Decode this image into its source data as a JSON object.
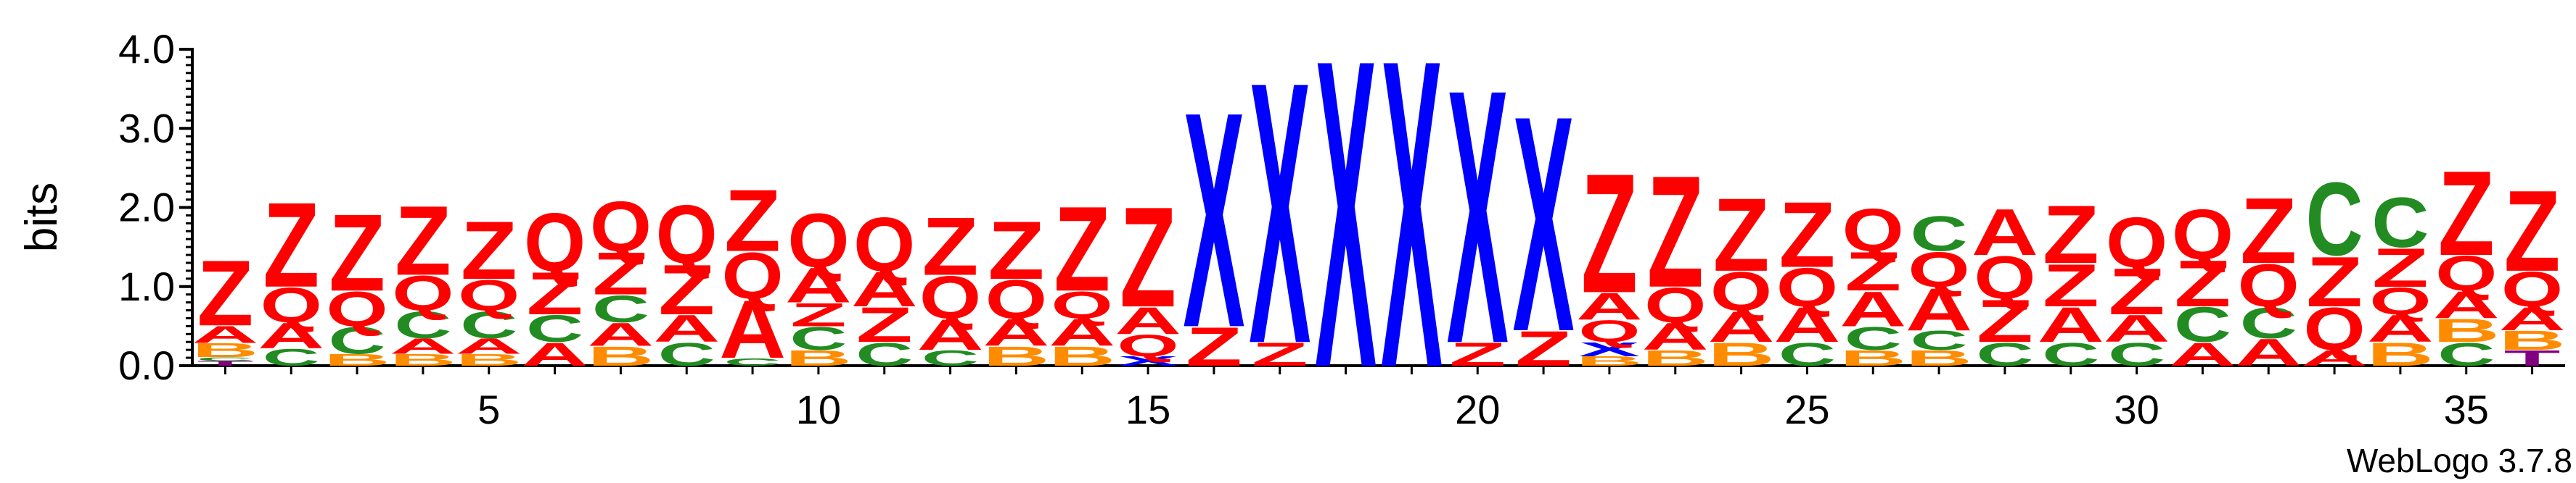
{
  "chart_data": {
    "type": "sequence-logo",
    "ylabel": "bits",
    "ylim": [
      0,
      4.0
    ],
    "y_ticks": [
      "0.0",
      "1.0",
      "2.0",
      "3.0",
      "4.0"
    ],
    "x_ticks": [
      5,
      10,
      15,
      20,
      25,
      30,
      35
    ],
    "xlim": [
      0.5,
      36.5
    ],
    "credit": "WebLogo 3.7.8",
    "colors": {
      "Z": "#ff0000",
      "Q": "#ff0000",
      "A": "#ff0000",
      "X": "#0000ff",
      "C": "#228b22",
      "B": "#ff8c00",
      "T": "#800080"
    },
    "columns": [
      {
        "pos": 1,
        "stack": [
          [
            "T",
            0.06
          ],
          [
            "C",
            0.05
          ],
          [
            "B",
            0.18
          ],
          [
            "A",
            0.22
          ],
          [
            "Z",
            0.85
          ]
        ]
      },
      {
        "pos": 2,
        "stack": [
          [
            "C",
            0.22
          ],
          [
            "A",
            0.33
          ],
          [
            "Q",
            0.45
          ],
          [
            "Z",
            1.1
          ]
        ]
      },
      {
        "pos": 3,
        "stack": [
          [
            "B",
            0.15
          ],
          [
            "C",
            0.35
          ],
          [
            "Q",
            0.45
          ],
          [
            "Z",
            1.0
          ]
        ]
      },
      {
        "pos": 4,
        "stack": [
          [
            "B",
            0.15
          ],
          [
            "A",
            0.2
          ],
          [
            "C",
            0.35
          ],
          [
            "Q",
            0.45
          ],
          [
            "Z",
            0.9
          ]
        ]
      },
      {
        "pos": 5,
        "stack": [
          [
            "B",
            0.15
          ],
          [
            "A",
            0.2
          ],
          [
            "C",
            0.35
          ],
          [
            "Q",
            0.4
          ],
          [
            "Z",
            0.75
          ]
        ]
      },
      {
        "pos": 6,
        "stack": [
          [
            "A",
            0.3
          ],
          [
            "C",
            0.35
          ],
          [
            "Z",
            0.55
          ],
          [
            "Q",
            0.75
          ]
        ]
      },
      {
        "pos": 7,
        "stack": [
          [
            "B",
            0.25
          ],
          [
            "A",
            0.3
          ],
          [
            "C",
            0.35
          ],
          [
            "Z",
            0.55
          ],
          [
            "Q",
            0.65
          ]
        ]
      },
      {
        "pos": 8,
        "stack": [
          [
            "C",
            0.3
          ],
          [
            "A",
            0.35
          ],
          [
            "Z",
            0.65
          ],
          [
            "Q",
            0.75
          ]
        ]
      },
      {
        "pos": 9,
        "stack": [
          [
            "C",
            0.1
          ],
          [
            "A",
            0.75
          ],
          [
            "Q",
            0.6
          ],
          [
            "Z",
            0.8
          ]
        ]
      },
      {
        "pos": 10,
        "stack": [
          [
            "B",
            0.2
          ],
          [
            "C",
            0.3
          ],
          [
            "Z",
            0.3
          ],
          [
            "A",
            0.45
          ],
          [
            "Q",
            0.7
          ]
        ]
      },
      {
        "pos": 11,
        "stack": [
          [
            "C",
            0.3
          ],
          [
            "Z",
            0.45
          ],
          [
            "A",
            0.45
          ],
          [
            "Q",
            0.7
          ]
        ]
      },
      {
        "pos": 12,
        "stack": [
          [
            "C",
            0.2
          ],
          [
            "A",
            0.4
          ],
          [
            "Q",
            0.55
          ],
          [
            "Z",
            0.75
          ]
        ]
      },
      {
        "pos": 13,
        "stack": [
          [
            "B",
            0.25
          ],
          [
            "A",
            0.35
          ],
          [
            "Q",
            0.5
          ],
          [
            "Z",
            0.75
          ]
        ]
      },
      {
        "pos": 14,
        "stack": [
          [
            "B",
            0.25
          ],
          [
            "A",
            0.35
          ],
          [
            "Q",
            0.35
          ],
          [
            "Z",
            1.1
          ]
        ]
      },
      {
        "pos": 15,
        "stack": [
          [
            "X",
            0.12
          ],
          [
            "Q",
            0.28
          ],
          [
            "A",
            0.35
          ],
          [
            "Z",
            1.3
          ]
        ]
      },
      {
        "pos": 16,
        "stack": [
          [
            "Z",
            0.5
          ],
          [
            "X",
            2.8
          ]
        ]
      },
      {
        "pos": 17,
        "stack": [
          [
            "Z",
            0.3
          ],
          [
            "X",
            3.4
          ]
        ]
      },
      {
        "pos": 18,
        "stack": [
          [
            "X",
            4.0
          ]
        ]
      },
      {
        "pos": 19,
        "stack": [
          [
            "X",
            4.0
          ]
        ]
      },
      {
        "pos": 20,
        "stack": [
          [
            "Z",
            0.3
          ],
          [
            "X",
            3.3
          ]
        ]
      },
      {
        "pos": 21,
        "stack": [
          [
            "Z",
            0.45
          ],
          [
            "X",
            2.8
          ]
        ]
      },
      {
        "pos": 22,
        "stack": [
          [
            "B",
            0.12
          ],
          [
            "X",
            0.18
          ],
          [
            "Q",
            0.28
          ],
          [
            "A",
            0.35
          ],
          [
            "Z",
            1.55
          ]
        ]
      },
      {
        "pos": 23,
        "stack": [
          [
            "B",
            0.2
          ],
          [
            "A",
            0.35
          ],
          [
            "Q",
            0.45
          ],
          [
            "Z",
            1.45
          ]
        ]
      },
      {
        "pos": 24,
        "stack": [
          [
            "B",
            0.3
          ],
          [
            "A",
            0.4
          ],
          [
            "Q",
            0.5
          ],
          [
            "Z",
            0.95
          ]
        ]
      },
      {
        "pos": 25,
        "stack": [
          [
            "C",
            0.3
          ],
          [
            "A",
            0.45
          ],
          [
            "Q",
            0.5
          ],
          [
            "Z",
            0.85
          ]
        ]
      },
      {
        "pos": 26,
        "stack": [
          [
            "B",
            0.2
          ],
          [
            "C",
            0.3
          ],
          [
            "A",
            0.45
          ],
          [
            "Z",
            0.5
          ],
          [
            "Q",
            0.55
          ]
        ]
      },
      {
        "pos": 27,
        "stack": [
          [
            "B",
            0.2
          ],
          [
            "C",
            0.25
          ],
          [
            "A",
            0.55
          ],
          [
            "Q",
            0.45
          ],
          [
            "C",
            0.45
          ]
        ]
      },
      {
        "pos": 28,
        "stack": [
          [
            "C",
            0.3
          ],
          [
            "Z",
            0.55
          ],
          [
            "Q",
            0.55
          ],
          [
            "A",
            0.6
          ]
        ]
      },
      {
        "pos": 29,
        "stack": [
          [
            "C",
            0.3
          ],
          [
            "A",
            0.45
          ],
          [
            "Z",
            0.55
          ],
          [
            "Z",
            0.75
          ]
        ]
      },
      {
        "pos": 30,
        "stack": [
          [
            "C",
            0.3
          ],
          [
            "A",
            0.35
          ],
          [
            "Z",
            0.6
          ],
          [
            "Q",
            0.65
          ]
        ]
      },
      {
        "pos": 31,
        "stack": [
          [
            "A",
            0.3
          ],
          [
            "C",
            0.45
          ],
          [
            "Z",
            0.6
          ],
          [
            "Q",
            0.65
          ]
        ]
      },
      {
        "pos": 32,
        "stack": [
          [
            "A",
            0.35
          ],
          [
            "C",
            0.4
          ],
          [
            "Q",
            0.55
          ],
          [
            "Z",
            0.85
          ]
        ]
      },
      {
        "pos": 33,
        "stack": [
          [
            "A",
            0.2
          ],
          [
            "Q",
            0.55
          ],
          [
            "Z",
            0.65
          ],
          [
            "C",
            0.95
          ]
        ]
      },
      {
        "pos": 34,
        "stack": [
          [
            "B",
            0.3
          ],
          [
            "A",
            0.35
          ],
          [
            "Q",
            0.35
          ],
          [
            "Z",
            0.5
          ],
          [
            "C",
            0.65
          ]
        ]
      },
      {
        "pos": 35,
        "stack": [
          [
            "C",
            0.3
          ],
          [
            "B",
            0.3
          ],
          [
            "A",
            0.35
          ],
          [
            "Q",
            0.45
          ],
          [
            "Z",
            1.1
          ]
        ]
      },
      {
        "pos": 36,
        "stack": [
          [
            "T",
            0.2
          ],
          [
            "B",
            0.25
          ],
          [
            "A",
            0.3
          ],
          [
            "Q",
            0.45
          ],
          [
            "Z",
            1.05
          ]
        ]
      }
    ]
  }
}
